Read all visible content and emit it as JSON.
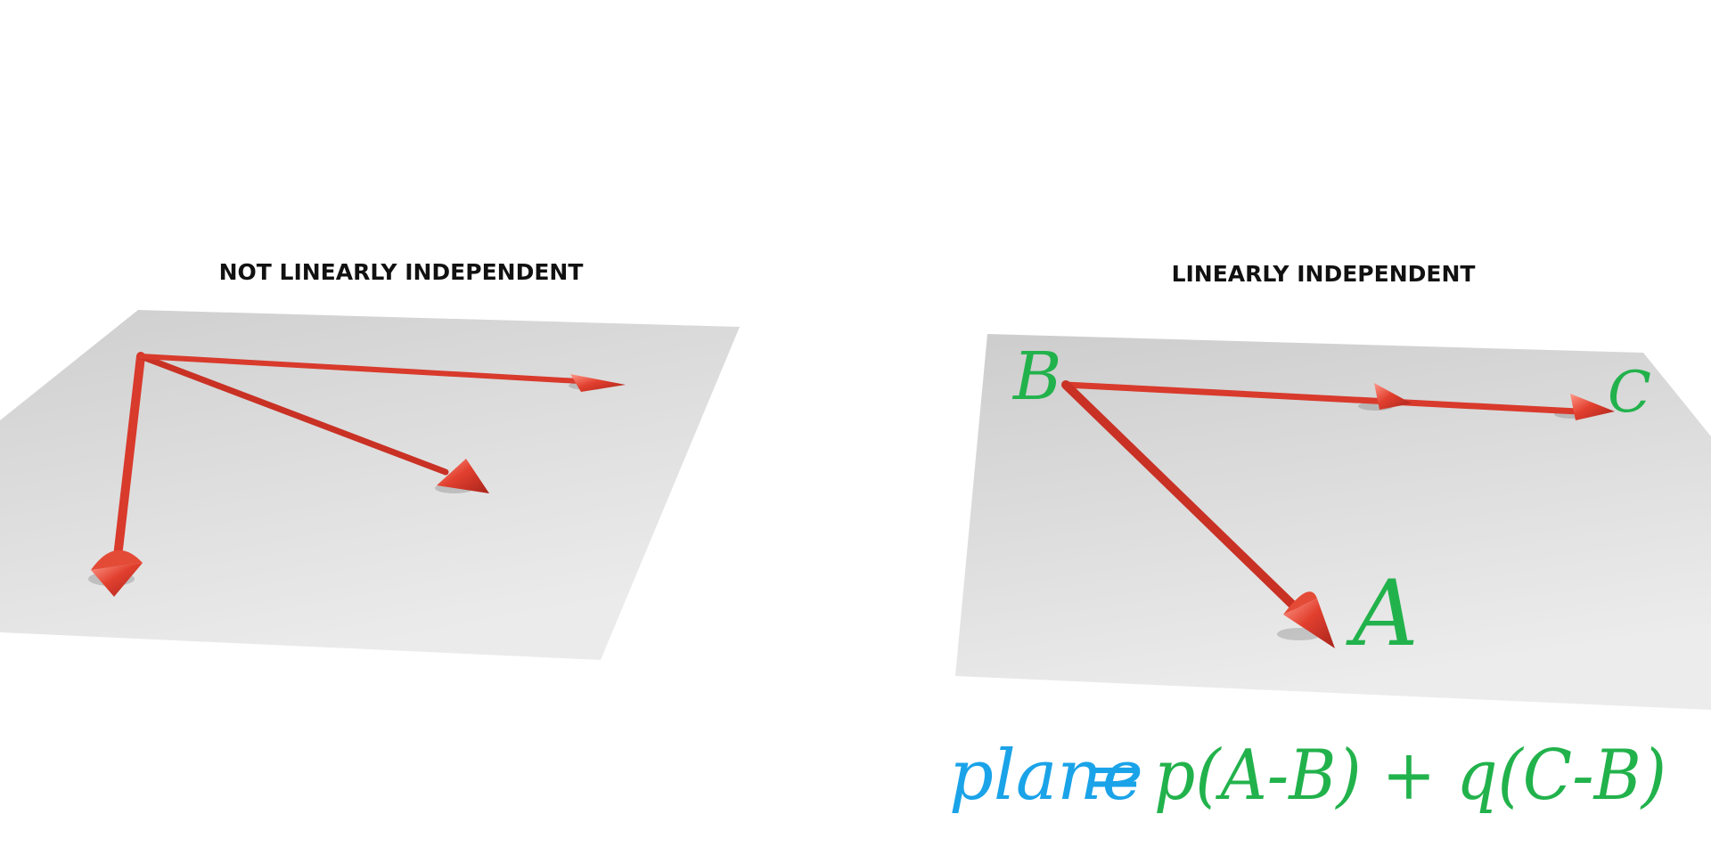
{
  "panels": {
    "left": {
      "title": "NOT LINEARLY INDEPENDENT"
    },
    "right": {
      "title": "LINEARLY INDEPENDENT",
      "labels": {
        "b": "B",
        "c": "C",
        "a": "A"
      }
    }
  },
  "equation": {
    "lhs": "plane",
    "equals": "=",
    "rhs": "p(A-B) + q(C-B)"
  },
  "colors": {
    "arrow": "#d83a2c",
    "plane": "#d7d7d7",
    "label_green": "#22b24c",
    "label_blue": "#1aa3e8"
  }
}
